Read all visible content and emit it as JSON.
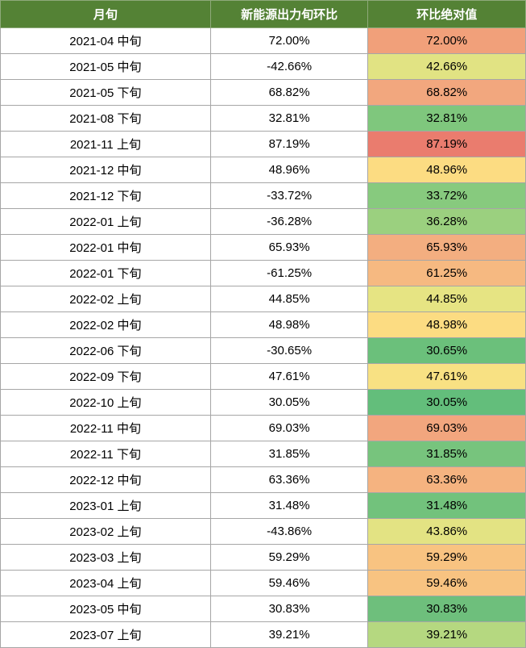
{
  "table": {
    "type": "table",
    "header_bg": "#548235",
    "header_fg": "#ffffff",
    "border_color": "#a6a6a6",
    "header_border_color": "#8ea97a",
    "font_size_header": 15,
    "font_size_cell": 15,
    "col_widths_pct": [
      40,
      30,
      30
    ],
    "heatmap_palette_note": "green-yellow-red continuous, low=green high=red",
    "columns": [
      "月旬",
      "新能源出力旬环比",
      "环比绝对值"
    ],
    "rows": [
      {
        "period": "2021-04 中旬",
        "mom": "72.00%",
        "abs": "72.00%",
        "abs_bg": "#f1a07a"
      },
      {
        "period": "2021-05 中旬",
        "mom": "-42.66%",
        "abs": "42.66%",
        "abs_bg": "#e1e383"
      },
      {
        "period": "2021-05 下旬",
        "mom": "68.82%",
        "abs": "68.82%",
        "abs_bg": "#f2a77e"
      },
      {
        "period": "2021-08 下旬",
        "mom": "32.81%",
        "abs": "32.81%",
        "abs_bg": "#7fc77d"
      },
      {
        "period": "2021-11 上旬",
        "mom": "87.19%",
        "abs": "87.19%",
        "abs_bg": "#ea7c6e"
      },
      {
        "period": "2021-12 中旬",
        "mom": "48.96%",
        "abs": "48.96%",
        "abs_bg": "#fcdc82"
      },
      {
        "period": "2021-12 下旬",
        "mom": "-33.72%",
        "abs": "33.72%",
        "abs_bg": "#87ca7e"
      },
      {
        "period": "2022-01 上旬",
        "mom": "-36.28%",
        "abs": "36.28%",
        "abs_bg": "#9bd07f"
      },
      {
        "period": "2022-01 中旬",
        "mom": "65.93%",
        "abs": "65.93%",
        "abs_bg": "#f3ae80"
      },
      {
        "period": "2022-01 下旬",
        "mom": "-61.25%",
        "abs": "61.25%",
        "abs_bg": "#f6b981"
      },
      {
        "period": "2022-02 上旬",
        "mom": "44.85%",
        "abs": "44.85%",
        "abs_bg": "#e6e483"
      },
      {
        "period": "2022-02 中旬",
        "mom": "48.98%",
        "abs": "48.98%",
        "abs_bg": "#fcdc82"
      },
      {
        "period": "2022-06 下旬",
        "mom": "-30.65%",
        "abs": "30.65%",
        "abs_bg": "#6bc07b"
      },
      {
        "period": "2022-09 下旬",
        "mom": "47.61%",
        "abs": "47.61%",
        "abs_bg": "#f8e183"
      },
      {
        "period": "2022-10 上旬",
        "mom": "30.05%",
        "abs": "30.05%",
        "abs_bg": "#63be7b"
      },
      {
        "period": "2022-11 中旬",
        "mom": "69.03%",
        "abs": "69.03%",
        "abs_bg": "#f2a67e"
      },
      {
        "period": "2022-11 下旬",
        "mom": "31.85%",
        "abs": "31.85%",
        "abs_bg": "#77c47d"
      },
      {
        "period": "2022-12 中旬",
        "mom": "63.36%",
        "abs": "63.36%",
        "abs_bg": "#f5b380"
      },
      {
        "period": "2023-01 上旬",
        "mom": "31.48%",
        "abs": "31.48%",
        "abs_bg": "#72c27c"
      },
      {
        "period": "2023-02 上旬",
        "mom": "-43.86%",
        "abs": "43.86%",
        "abs_bg": "#e3e383"
      },
      {
        "period": "2023-03 上旬",
        "mom": "59.29%",
        "abs": "59.29%",
        "abs_bg": "#f8c381"
      },
      {
        "period": "2023-04 上旬",
        "mom": "59.46%",
        "abs": "59.46%",
        "abs_bg": "#f8c381"
      },
      {
        "period": "2023-05 中旬",
        "mom": "30.83%",
        "abs": "30.83%",
        "abs_bg": "#6ebf7c"
      },
      {
        "period": "2023-07 上旬",
        "mom": "39.21%",
        "abs": "39.21%",
        "abs_bg": "#b5d880"
      }
    ]
  }
}
